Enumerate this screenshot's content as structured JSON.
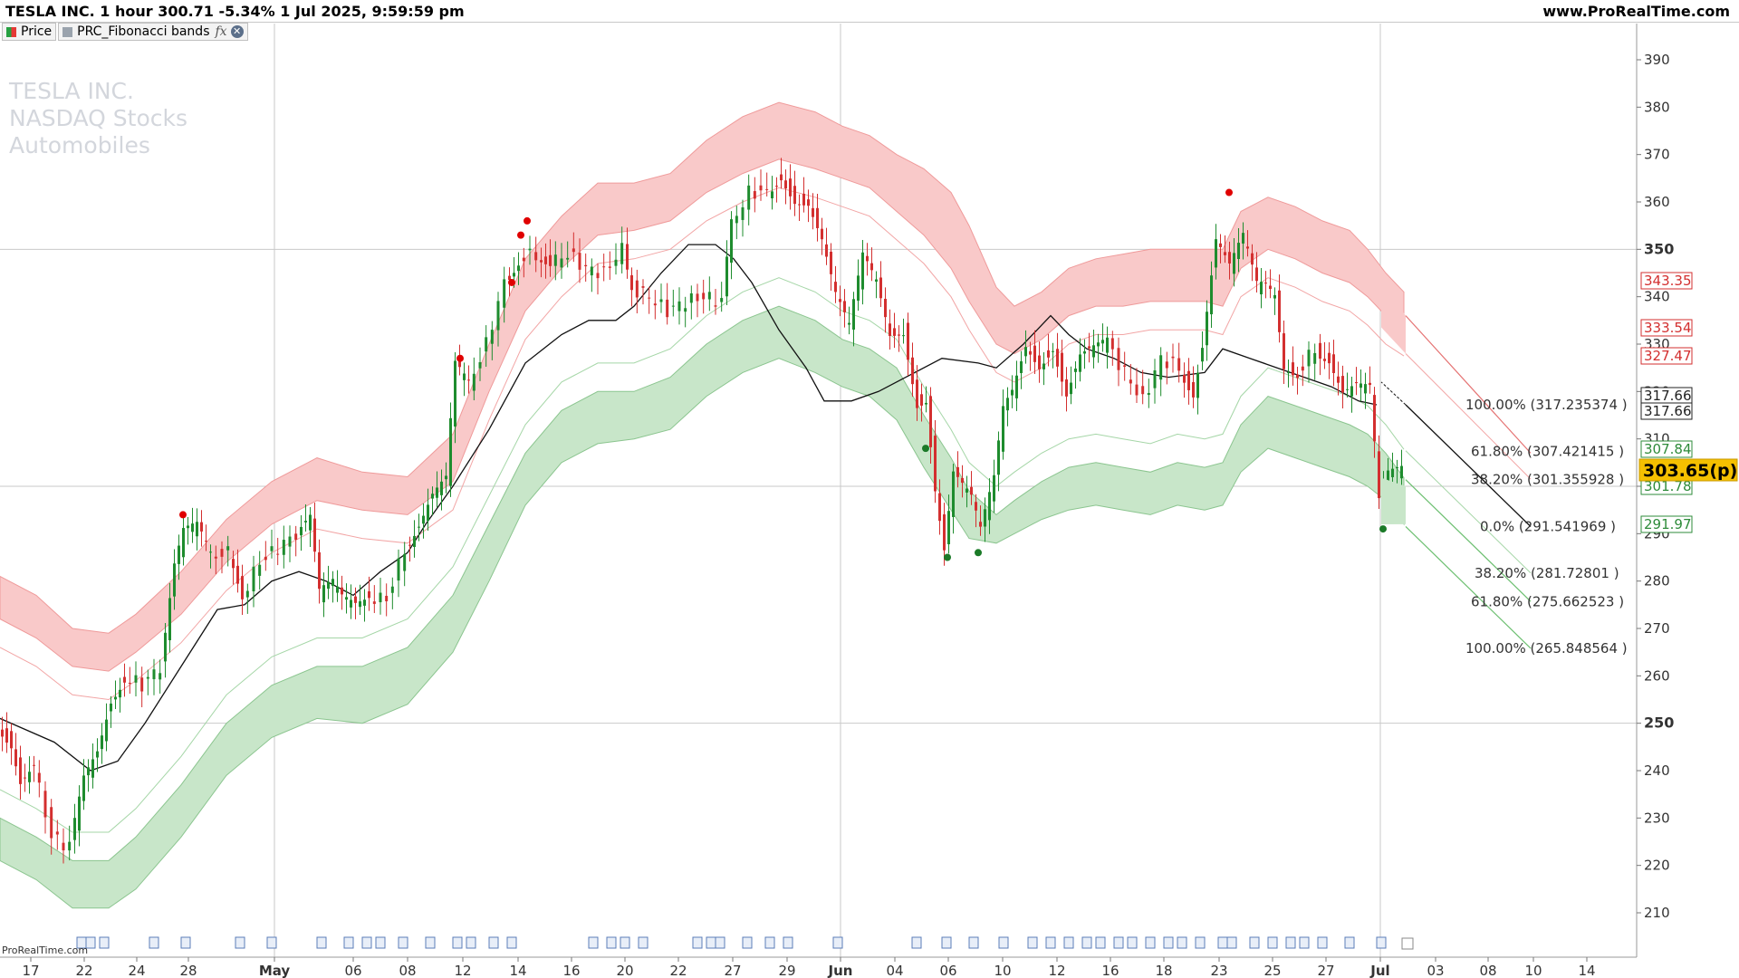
{
  "header": {
    "title": "TESLA INC. 1 hour 300.71 -5.34% 1 Jul 2025, 9:59:59 pm",
    "site": "www.ProRealTime.com"
  },
  "legend": [
    {
      "label": "Price"
    },
    {
      "label": "PRC_Fibonacci bands"
    }
  ],
  "watermark": [
    "TESLA INC.",
    "NASDAQ Stocks",
    "Automobiles"
  ],
  "footer": "ProRealTime.com",
  "colors": {
    "bull": "#1e8c2e",
    "bear": "#d32f2f",
    "upper_band": "#f9c9c9",
    "lower_band": "#c8e6c9",
    "last_price_bg": "#f5c000"
  },
  "chart_data": {
    "type": "line",
    "y_axis_range": [
      200,
      395
    ],
    "y_ticks": [
      "390",
      "380",
      "370",
      "360",
      "350",
      "340",
      "330",
      "320",
      "310",
      "300",
      "290",
      "280",
      "270",
      "260",
      "250",
      "240",
      "230",
      "220",
      "210"
    ],
    "x_ticks": [
      "17",
      "22",
      "24",
      "28",
      "May",
      "06",
      "08",
      "12",
      "14",
      "16",
      "20",
      "22",
      "27",
      "29",
      "Jun",
      "04",
      "06",
      "10",
      "12",
      "16",
      "18",
      "23",
      "25",
      "27",
      "Jul",
      "03",
      "08",
      "10",
      "14"
    ],
    "series": [
      {
        "name": "Price",
        "last": 303.65,
        "last_label": "303.65(p)"
      }
    ],
    "indicator_values": [
      {
        "label": "343.35",
        "value": 343.35,
        "color": "red"
      },
      {
        "label": "333.54",
        "value": 333.54,
        "color": "red"
      },
      {
        "label": "327.47",
        "value": 327.47,
        "color": "red"
      },
      {
        "label": "317.66",
        "value": 317.66,
        "color": "black"
      },
      {
        "label": "317.66",
        "value": 317.66,
        "color": "black"
      },
      {
        "label": "307.84",
        "value": 307.84,
        "color": "green"
      },
      {
        "label": "301.78",
        "value": 301.78,
        "color": "green"
      },
      {
        "label": "291.97",
        "value": 291.97,
        "color": "green"
      }
    ],
    "fib_annotations": [
      {
        "label": "100.00% (317.235374 )",
        "value": 317.235374
      },
      {
        "label": "61.80% (307.421415 )",
        "value": 307.421415
      },
      {
        "label": "38.20% (301.355928 )",
        "value": 301.355928
      },
      {
        "label": "0.0% (291.541969 )",
        "value": 291.541969
      },
      {
        "label": "38.20% (281.72801 )",
        "value": 281.72801
      },
      {
        "label": "61.80% (275.662523 )",
        "value": 275.662523
      },
      {
        "label": "100.00% (265.848564 )",
        "value": 265.848564
      }
    ],
    "horizontal_lines": [
      350,
      300,
      250
    ],
    "mid_line": [
      [
        0,
        251
      ],
      [
        60,
        246
      ],
      [
        100,
        240
      ],
      [
        130,
        242
      ],
      [
        160,
        250
      ],
      [
        200,
        262
      ],
      [
        240,
        274
      ],
      [
        270,
        275
      ],
      [
        300,
        280
      ],
      [
        330,
        282
      ],
      [
        360,
        280
      ],
      [
        390,
        277
      ],
      [
        420,
        282
      ],
      [
        450,
        286
      ],
      [
        470,
        292
      ],
      [
        500,
        300
      ],
      [
        540,
        312
      ],
      [
        580,
        326
      ],
      [
        620,
        332
      ],
      [
        650,
        335
      ],
      [
        680,
        335
      ],
      [
        700,
        338
      ],
      [
        730,
        345
      ],
      [
        760,
        351
      ],
      [
        790,
        351
      ],
      [
        810,
        348
      ],
      [
        830,
        343
      ],
      [
        860,
        333
      ],
      [
        890,
        325
      ],
      [
        910,
        318
      ],
      [
        940,
        318
      ],
      [
        970,
        320
      ],
      [
        1000,
        323
      ],
      [
        1040,
        327
      ],
      [
        1080,
        326
      ],
      [
        1100,
        325
      ],
      [
        1130,
        330
      ],
      [
        1160,
        336
      ],
      [
        1180,
        332
      ],
      [
        1200,
        329
      ],
      [
        1230,
        327
      ],
      [
        1260,
        324
      ],
      [
        1290,
        323
      ],
      [
        1330,
        324
      ],
      [
        1350,
        329
      ],
      [
        1380,
        327
      ],
      [
        1410,
        325
      ],
      [
        1440,
        323
      ],
      [
        1470,
        321
      ],
      [
        1500,
        318
      ],
      [
        1520,
        317.2
      ]
    ],
    "band_upper_top": [
      [
        0,
        281
      ],
      [
        40,
        277
      ],
      [
        80,
        270
      ],
      [
        120,
        269
      ],
      [
        150,
        273
      ],
      [
        200,
        282
      ],
      [
        250,
        293
      ],
      [
        300,
        301
      ],
      [
        350,
        306
      ],
      [
        400,
        303
      ],
      [
        450,
        302
      ],
      [
        500,
        311
      ],
      [
        540,
        330
      ],
      [
        580,
        348
      ],
      [
        620,
        357
      ],
      [
        660,
        364
      ],
      [
        700,
        364
      ],
      [
        740,
        366
      ],
      [
        780,
        373
      ],
      [
        820,
        378
      ],
      [
        860,
        381
      ],
      [
        900,
        379
      ],
      [
        930,
        376
      ],
      [
        960,
        374
      ],
      [
        990,
        370
      ],
      [
        1020,
        367
      ],
      [
        1050,
        362
      ],
      [
        1070,
        355
      ],
      [
        1100,
        342
      ],
      [
        1120,
        338
      ],
      [
        1150,
        341
      ],
      [
        1180,
        346
      ],
      [
        1210,
        348
      ],
      [
        1240,
        349
      ],
      [
        1270,
        350
      ],
      [
        1300,
        350
      ],
      [
        1330,
        350
      ],
      [
        1350,
        350
      ],
      [
        1370,
        358
      ],
      [
        1400,
        361
      ],
      [
        1430,
        359
      ],
      [
        1460,
        356
      ],
      [
        1490,
        354
      ],
      [
        1510,
        350
      ],
      [
        1530,
        345
      ],
      [
        1550,
        341
      ]
    ],
    "band_upper_bottom": [
      [
        0,
        272
      ],
      [
        40,
        268
      ],
      [
        80,
        262
      ],
      [
        120,
        261
      ],
      [
        150,
        265
      ],
      [
        200,
        273
      ],
      [
        250,
        284
      ],
      [
        300,
        292
      ],
      [
        350,
        297
      ],
      [
        400,
        295
      ],
      [
        450,
        294
      ],
      [
        500,
        301
      ],
      [
        540,
        320
      ],
      [
        580,
        337
      ],
      [
        620,
        346
      ],
      [
        660,
        353
      ],
      [
        700,
        354
      ],
      [
        740,
        356
      ],
      [
        780,
        362
      ],
      [
        820,
        366
      ],
      [
        860,
        369
      ],
      [
        900,
        367
      ],
      [
        930,
        365
      ],
      [
        960,
        363
      ],
      [
        990,
        358
      ],
      [
        1020,
        353
      ],
      [
        1050,
        346
      ],
      [
        1070,
        339
      ],
      [
        1100,
        330
      ],
      [
        1120,
        328
      ],
      [
        1150,
        331
      ],
      [
        1180,
        336
      ],
      [
        1210,
        338
      ],
      [
        1240,
        338
      ],
      [
        1270,
        339
      ],
      [
        1300,
        339
      ],
      [
        1330,
        339
      ],
      [
        1350,
        338
      ],
      [
        1370,
        346
      ],
      [
        1400,
        350
      ],
      [
        1430,
        348
      ],
      [
        1460,
        345
      ],
      [
        1490,
        343
      ],
      [
        1510,
        340
      ],
      [
        1530,
        336
      ],
      [
        1550,
        333.5
      ]
    ],
    "band_lower_top": [
      [
        0,
        230
      ],
      [
        40,
        226
      ],
      [
        80,
        221
      ],
      [
        120,
        221
      ],
      [
        150,
        226
      ],
      [
        200,
        237
      ],
      [
        250,
        250
      ],
      [
        300,
        258
      ],
      [
        350,
        262
      ],
      [
        400,
        262
      ],
      [
        450,
        266
      ],
      [
        500,
        277
      ],
      [
        540,
        292
      ],
      [
        580,
        307
      ],
      [
        620,
        316
      ],
      [
        660,
        320
      ],
      [
        700,
        320
      ],
      [
        740,
        323
      ],
      [
        780,
        330
      ],
      [
        820,
        335
      ],
      [
        860,
        338
      ],
      [
        900,
        335
      ],
      [
        930,
        331
      ],
      [
        960,
        329
      ],
      [
        990,
        325
      ],
      [
        1020,
        315
      ],
      [
        1050,
        306
      ],
      [
        1070,
        299
      ],
      [
        1100,
        294
      ],
      [
        1120,
        297
      ],
      [
        1150,
        301
      ],
      [
        1180,
        304
      ],
      [
        1210,
        305
      ],
      [
        1240,
        304
      ],
      [
        1270,
        303
      ],
      [
        1300,
        305
      ],
      [
        1330,
        304
      ],
      [
        1350,
        305
      ],
      [
        1370,
        313
      ],
      [
        1400,
        319
      ],
      [
        1430,
        317
      ],
      [
        1460,
        315
      ],
      [
        1490,
        313
      ],
      [
        1510,
        311
      ],
      [
        1530,
        307
      ],
      [
        1550,
        301.8
      ]
    ],
    "band_lower_bottom": [
      [
        0,
        221
      ],
      [
        40,
        217
      ],
      [
        80,
        211
      ],
      [
        120,
        211
      ],
      [
        150,
        215
      ],
      [
        200,
        226
      ],
      [
        250,
        239
      ],
      [
        300,
        247
      ],
      [
        350,
        251
      ],
      [
        400,
        250
      ],
      [
        450,
        254
      ],
      [
        500,
        265
      ],
      [
        540,
        280
      ],
      [
        580,
        296
      ],
      [
        620,
        305
      ],
      [
        660,
        309
      ],
      [
        700,
        310
      ],
      [
        740,
        312
      ],
      [
        780,
        319
      ],
      [
        820,
        324
      ],
      [
        860,
        327
      ],
      [
        900,
        324
      ],
      [
        930,
        321
      ],
      [
        960,
        319
      ],
      [
        990,
        314
      ],
      [
        1020,
        304
      ],
      [
        1050,
        295
      ],
      [
        1070,
        289
      ],
      [
        1100,
        288
      ],
      [
        1120,
        290
      ],
      [
        1150,
        293
      ],
      [
        1180,
        295
      ],
      [
        1210,
        296
      ],
      [
        1240,
        295
      ],
      [
        1270,
        294
      ],
      [
        1300,
        296
      ],
      [
        1330,
        295
      ],
      [
        1350,
        296
      ],
      [
        1370,
        303
      ],
      [
        1400,
        308
      ],
      [
        1430,
        306
      ],
      [
        1460,
        304
      ],
      [
        1490,
        302
      ],
      [
        1510,
        300
      ],
      [
        1530,
        297
      ],
      [
        1550,
        292
      ]
    ],
    "price_path": [
      [
        0,
        250
      ],
      [
        15,
        246
      ],
      [
        25,
        238
      ],
      [
        40,
        241
      ],
      [
        60,
        226
      ],
      [
        80,
        224
      ],
      [
        95,
        238
      ],
      [
        110,
        244
      ],
      [
        125,
        255
      ],
      [
        140,
        260
      ],
      [
        160,
        258
      ],
      [
        180,
        262
      ],
      [
        195,
        283
      ],
      [
        205,
        290
      ],
      [
        220,
        291
      ],
      [
        235,
        285
      ],
      [
        255,
        286
      ],
      [
        270,
        277
      ],
      [
        290,
        284
      ],
      [
        310,
        287
      ],
      [
        330,
        290
      ],
      [
        345,
        293
      ],
      [
        355,
        277
      ],
      [
        370,
        279
      ],
      [
        380,
        276
      ],
      [
        395,
        275
      ],
      [
        410,
        277
      ],
      [
        430,
        276
      ],
      [
        450,
        287
      ],
      [
        465,
        292
      ],
      [
        480,
        298
      ],
      [
        495,
        301
      ],
      [
        505,
        325
      ],
      [
        520,
        321
      ],
      [
        540,
        330
      ],
      [
        560,
        343
      ],
      [
        575,
        348
      ],
      [
        595,
        349
      ],
      [
        610,
        347
      ],
      [
        630,
        349
      ],
      [
        650,
        346
      ],
      [
        670,
        345
      ],
      [
        690,
        350
      ],
      [
        700,
        342
      ],
      [
        720,
        340
      ],
      [
        740,
        337
      ],
      [
        760,
        339
      ],
      [
        780,
        340
      ],
      [
        800,
        339
      ],
      [
        810,
        355
      ],
      [
        830,
        362
      ],
      [
        850,
        362
      ],
      [
        865,
        366
      ],
      [
        880,
        361
      ],
      [
        895,
        360
      ],
      [
        910,
        352
      ],
      [
        925,
        340
      ],
      [
        940,
        333
      ],
      [
        955,
        348
      ],
      [
        970,
        343
      ],
      [
        985,
        332
      ],
      [
        1000,
        333
      ],
      [
        1015,
        318
      ],
      [
        1025,
        319
      ],
      [
        1035,
        300
      ],
      [
        1045,
        287
      ],
      [
        1055,
        303
      ],
      [
        1065,
        300
      ],
      [
        1075,
        297
      ],
      [
        1085,
        290
      ],
      [
        1100,
        301
      ],
      [
        1110,
        316
      ],
      [
        1120,
        320
      ],
      [
        1135,
        330
      ],
      [
        1150,
        326
      ],
      [
        1165,
        330
      ],
      [
        1180,
        320
      ],
      [
        1195,
        328
      ],
      [
        1210,
        329
      ],
      [
        1225,
        330
      ],
      [
        1245,
        324
      ],
      [
        1265,
        318
      ],
      [
        1285,
        327
      ],
      [
        1305,
        325
      ],
      [
        1320,
        320
      ],
      [
        1330,
        330
      ],
      [
        1345,
        352
      ],
      [
        1360,
        346
      ],
      [
        1375,
        352
      ],
      [
        1390,
        342
      ],
      [
        1400,
        342
      ],
      [
        1410,
        340
      ],
      [
        1420,
        325
      ],
      [
        1435,
        324
      ],
      [
        1455,
        329
      ],
      [
        1470,
        327
      ],
      [
        1485,
        320
      ],
      [
        1500,
        321
      ],
      [
        1515,
        320
      ],
      [
        1525,
        296
      ],
      [
        1535,
        302
      ],
      [
        1550,
        303.65
      ]
    ],
    "markers_red": [
      [
        202,
        294
      ],
      [
        508,
        327
      ],
      [
        565,
        343
      ],
      [
        575,
        353
      ],
      [
        582,
        356
      ],
      [
        1357,
        362
      ]
    ],
    "markers_green": [
      [
        1022,
        308
      ],
      [
        1046,
        285
      ],
      [
        1080,
        286
      ],
      [
        1527,
        291
      ]
    ]
  }
}
